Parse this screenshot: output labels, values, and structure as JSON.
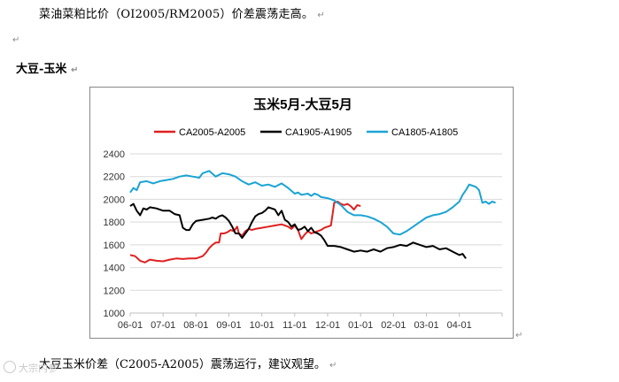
{
  "document": {
    "paragraph_1": "菜油菜粕比价（OI2005/RM2005）价差震荡走高。",
    "paragraph_1_mark": "↵",
    "empty_mark": "↵",
    "heading": "大豆-玉米",
    "heading_mark": "↵",
    "chart_end_mark": "↵",
    "paragraph_2": "大豆玉米价差（C2005-A2005）震荡运行，建议观望。",
    "paragraph_2_mark": "↵",
    "watermark": "大宗内参"
  },
  "chart_data": {
    "type": "line",
    "title": "玉米5月-大豆5月",
    "legend_position": "top",
    "grid": "horizontal",
    "xlabel": "",
    "ylabel": "",
    "ylim": [
      1000,
      2400
    ],
    "y_ticks": [
      1000,
      1200,
      1400,
      1600,
      1800,
      2000,
      2200,
      2400
    ],
    "x_tick_labels": [
      "06-01",
      "07-01",
      "08-01",
      "09-01",
      "10-01",
      "11-01",
      "12-01",
      "01-01",
      "02-01",
      "03-01",
      "04-01"
    ],
    "series": [
      {
        "name": "CA2005-A2005",
        "color": "#e02020",
        "points": [
          [
            0,
            1510
          ],
          [
            0.15,
            1500
          ],
          [
            0.3,
            1460
          ],
          [
            0.45,
            1445
          ],
          [
            0.6,
            1470
          ],
          [
            0.8,
            1460
          ],
          [
            1.0,
            1455
          ],
          [
            1.2,
            1470
          ],
          [
            1.4,
            1480
          ],
          [
            1.6,
            1475
          ],
          [
            1.8,
            1480
          ],
          [
            2.0,
            1480
          ],
          [
            2.2,
            1500
          ],
          [
            2.3,
            1530
          ],
          [
            2.4,
            1570
          ],
          [
            2.5,
            1600
          ],
          [
            2.6,
            1620
          ],
          [
            2.7,
            1620
          ],
          [
            2.75,
            1700
          ],
          [
            2.85,
            1700
          ],
          [
            2.95,
            1710
          ],
          [
            3.05,
            1730
          ],
          [
            3.15,
            1720
          ],
          [
            3.25,
            1760
          ],
          [
            3.3,
            1700
          ],
          [
            3.4,
            1680
          ],
          [
            3.5,
            1720
          ],
          [
            3.6,
            1740
          ],
          [
            3.7,
            1730
          ],
          [
            3.8,
            1740
          ],
          [
            4.0,
            1750
          ],
          [
            4.2,
            1760
          ],
          [
            4.4,
            1770
          ],
          [
            4.6,
            1780
          ],
          [
            4.8,
            1760
          ],
          [
            4.9,
            1740
          ],
          [
            5.0,
            1770
          ],
          [
            5.1,
            1730
          ],
          [
            5.15,
            1690
          ],
          [
            5.2,
            1650
          ],
          [
            5.3,
            1690
          ],
          [
            5.4,
            1720
          ],
          [
            5.5,
            1700
          ],
          [
            5.6,
            1710
          ],
          [
            5.8,
            1730
          ],
          [
            5.9,
            1750
          ],
          [
            6.0,
            1760
          ],
          [
            6.1,
            1770
          ],
          [
            6.15,
            1870
          ],
          [
            6.2,
            1970
          ],
          [
            6.3,
            1980
          ],
          [
            6.4,
            1960
          ],
          [
            6.5,
            1950
          ],
          [
            6.6,
            1960
          ],
          [
            6.7,
            1940
          ],
          [
            6.8,
            1910
          ],
          [
            6.9,
            1950
          ],
          [
            7.0,
            1940
          ]
        ]
      },
      {
        "name": "CA1905-A1905",
        "color": "#000000",
        "points": [
          [
            0,
            1940
          ],
          [
            0.1,
            1960
          ],
          [
            0.2,
            1900
          ],
          [
            0.3,
            1860
          ],
          [
            0.4,
            1920
          ],
          [
            0.5,
            1910
          ],
          [
            0.6,
            1930
          ],
          [
            0.8,
            1920
          ],
          [
            1.0,
            1900
          ],
          [
            1.2,
            1900
          ],
          [
            1.35,
            1870
          ],
          [
            1.5,
            1860
          ],
          [
            1.6,
            1750
          ],
          [
            1.7,
            1730
          ],
          [
            1.8,
            1730
          ],
          [
            1.9,
            1780
          ],
          [
            2.0,
            1810
          ],
          [
            2.2,
            1820
          ],
          [
            2.4,
            1830
          ],
          [
            2.5,
            1840
          ],
          [
            2.6,
            1830
          ],
          [
            2.7,
            1850
          ],
          [
            2.8,
            1860
          ],
          [
            2.9,
            1840
          ],
          [
            3.0,
            1810
          ],
          [
            3.1,
            1760
          ],
          [
            3.2,
            1700
          ],
          [
            3.3,
            1700
          ],
          [
            3.4,
            1660
          ],
          [
            3.5,
            1700
          ],
          [
            3.6,
            1740
          ],
          [
            3.7,
            1800
          ],
          [
            3.8,
            1850
          ],
          [
            3.9,
            1870
          ],
          [
            4.0,
            1880
          ],
          [
            4.1,
            1900
          ],
          [
            4.2,
            1930
          ],
          [
            4.3,
            1920
          ],
          [
            4.4,
            1910
          ],
          [
            4.5,
            1860
          ],
          [
            4.6,
            1900
          ],
          [
            4.7,
            1820
          ],
          [
            4.8,
            1800
          ],
          [
            4.9,
            1760
          ],
          [
            5.0,
            1780
          ],
          [
            5.1,
            1730
          ],
          [
            5.2,
            1740
          ],
          [
            5.3,
            1760
          ],
          [
            5.4,
            1720
          ],
          [
            5.5,
            1750
          ],
          [
            5.6,
            1710
          ],
          [
            5.7,
            1700
          ],
          [
            5.8,
            1680
          ],
          [
            5.9,
            1640
          ],
          [
            6.0,
            1590
          ],
          [
            6.2,
            1590
          ],
          [
            6.4,
            1580
          ],
          [
            6.6,
            1560
          ],
          [
            6.8,
            1540
          ],
          [
            7.0,
            1550
          ],
          [
            7.2,
            1540
          ],
          [
            7.4,
            1560
          ],
          [
            7.6,
            1540
          ],
          [
            7.8,
            1570
          ],
          [
            8.0,
            1580
          ],
          [
            8.2,
            1600
          ],
          [
            8.4,
            1590
          ],
          [
            8.6,
            1620
          ],
          [
            8.8,
            1600
          ],
          [
            9.0,
            1580
          ],
          [
            9.2,
            1590
          ],
          [
            9.4,
            1560
          ],
          [
            9.6,
            1570
          ],
          [
            9.8,
            1540
          ],
          [
            10.0,
            1510
          ],
          [
            10.1,
            1520
          ],
          [
            10.2,
            1480
          ]
        ]
      },
      {
        "name": "CA1805-A1805",
        "color": "#1aa3d4",
        "points": [
          [
            0,
            2060
          ],
          [
            0.1,
            2100
          ],
          [
            0.2,
            2080
          ],
          [
            0.3,
            2150
          ],
          [
            0.5,
            2160
          ],
          [
            0.7,
            2140
          ],
          [
            0.9,
            2160
          ],
          [
            1.1,
            2170
          ],
          [
            1.3,
            2180
          ],
          [
            1.5,
            2200
          ],
          [
            1.7,
            2210
          ],
          [
            1.9,
            2200
          ],
          [
            2.1,
            2190
          ],
          [
            2.2,
            2230
          ],
          [
            2.4,
            2250
          ],
          [
            2.6,
            2200
          ],
          [
            2.8,
            2230
          ],
          [
            3.0,
            2220
          ],
          [
            3.2,
            2200
          ],
          [
            3.4,
            2160
          ],
          [
            3.6,
            2130
          ],
          [
            3.8,
            2150
          ],
          [
            4.0,
            2120
          ],
          [
            4.2,
            2130
          ],
          [
            4.4,
            2110
          ],
          [
            4.6,
            2140
          ],
          [
            4.8,
            2100
          ],
          [
            5.0,
            2050
          ],
          [
            5.1,
            2060
          ],
          [
            5.2,
            2040
          ],
          [
            5.4,
            2050
          ],
          [
            5.5,
            2030
          ],
          [
            5.6,
            2050
          ],
          [
            5.7,
            2040
          ],
          [
            5.8,
            2020
          ],
          [
            6.0,
            2010
          ],
          [
            6.2,
            1990
          ],
          [
            6.4,
            1950
          ],
          [
            6.6,
            1890
          ],
          [
            6.8,
            1860
          ],
          [
            7.0,
            1860
          ],
          [
            7.2,
            1850
          ],
          [
            7.4,
            1830
          ],
          [
            7.6,
            1800
          ],
          [
            7.8,
            1760
          ],
          [
            8.0,
            1700
          ],
          [
            8.2,
            1690
          ],
          [
            8.4,
            1720
          ],
          [
            8.6,
            1760
          ],
          [
            8.8,
            1800
          ],
          [
            9.0,
            1840
          ],
          [
            9.2,
            1860
          ],
          [
            9.4,
            1870
          ],
          [
            9.6,
            1890
          ],
          [
            9.8,
            1930
          ],
          [
            10.0,
            1980
          ],
          [
            10.1,
            2040
          ],
          [
            10.2,
            2080
          ],
          [
            10.3,
            2130
          ],
          [
            10.4,
            2120
          ],
          [
            10.5,
            2110
          ],
          [
            10.6,
            2080
          ],
          [
            10.7,
            1970
          ],
          [
            10.8,
            1980
          ],
          [
            10.9,
            1960
          ],
          [
            11.0,
            1980
          ],
          [
            11.1,
            1970
          ]
        ]
      }
    ]
  }
}
